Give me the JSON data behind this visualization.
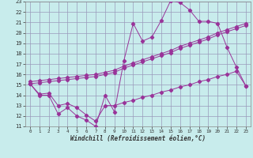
{
  "xlabel": "Windchill (Refroidissement éolien,°C)",
  "bg_color": "#c8ecec",
  "line_color": "#993399",
  "grid_color": "#9999bb",
  "xlim": [
    -0.5,
    23.5
  ],
  "ylim": [
    11,
    23
  ],
  "xticks": [
    0,
    1,
    2,
    3,
    4,
    5,
    6,
    7,
    8,
    9,
    10,
    11,
    12,
    13,
    14,
    15,
    16,
    17,
    18,
    19,
    20,
    21,
    22,
    23
  ],
  "yticks": [
    11,
    12,
    13,
    14,
    15,
    16,
    17,
    18,
    19,
    20,
    21,
    22,
    23
  ],
  "line1_x": [
    0,
    1,
    2,
    3,
    4,
    5,
    6,
    7,
    8,
    9,
    10,
    11,
    12,
    13,
    14,
    15,
    16,
    17,
    18,
    19,
    20,
    21,
    22,
    23
  ],
  "line1_y": [
    15.1,
    14.0,
    14.0,
    12.2,
    12.8,
    12.0,
    11.6,
    11.0,
    14.0,
    12.4,
    17.3,
    20.9,
    19.2,
    19.6,
    21.2,
    23.1,
    22.9,
    22.2,
    21.1,
    21.1,
    20.9,
    18.6,
    16.7,
    14.9
  ],
  "line2_x": [
    0,
    1,
    2,
    3,
    4,
    5,
    6,
    7,
    8,
    9,
    10,
    11,
    12,
    13,
    14,
    15,
    16,
    17,
    18,
    19,
    20,
    21,
    22,
    23
  ],
  "line2_y": [
    15.3,
    15.4,
    15.5,
    15.6,
    15.7,
    15.8,
    15.9,
    16.0,
    16.2,
    16.4,
    16.8,
    17.1,
    17.4,
    17.7,
    18.0,
    18.3,
    18.7,
    19.0,
    19.3,
    19.6,
    20.0,
    20.3,
    20.6,
    20.9
  ],
  "line3_x": [
    0,
    1,
    2,
    3,
    4,
    5,
    6,
    7,
    8,
    9,
    10,
    11,
    12,
    13,
    14,
    15,
    16,
    17,
    18,
    19,
    20,
    21,
    22,
    23
  ],
  "line3_y": [
    15.1,
    15.2,
    15.3,
    15.4,
    15.5,
    15.6,
    15.7,
    15.8,
    16.0,
    16.2,
    16.6,
    16.9,
    17.2,
    17.5,
    17.8,
    18.1,
    18.5,
    18.8,
    19.1,
    19.4,
    19.8,
    20.1,
    20.4,
    20.7
  ],
  "line4_x": [
    0,
    1,
    2,
    3,
    4,
    5,
    6,
    7,
    8,
    9,
    10,
    11,
    12,
    13,
    14,
    15,
    16,
    17,
    18,
    19,
    20,
    21,
    22,
    23
  ],
  "line4_y": [
    15.1,
    14.1,
    14.2,
    13.0,
    13.2,
    12.8,
    12.1,
    11.5,
    13.0,
    13.0,
    13.3,
    13.5,
    13.8,
    14.0,
    14.3,
    14.5,
    14.8,
    15.0,
    15.3,
    15.5,
    15.8,
    16.0,
    16.3,
    14.9
  ]
}
